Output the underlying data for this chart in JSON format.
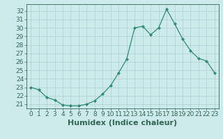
{
  "x": [
    0,
    1,
    2,
    3,
    4,
    5,
    6,
    7,
    8,
    9,
    10,
    11,
    12,
    13,
    14,
    15,
    16,
    17,
    18,
    19,
    20,
    21,
    22,
    23
  ],
  "y": [
    23,
    22.7,
    21.8,
    21.5,
    20.9,
    20.8,
    20.8,
    21.0,
    21.4,
    22.2,
    23.2,
    24.7,
    26.3,
    30.0,
    30.2,
    29.2,
    30.0,
    32.2,
    30.5,
    28.7,
    27.3,
    26.4,
    26.1,
    24.7
  ],
  "line_color": "#2e8b74",
  "marker": "D",
  "marker_size": 2.0,
  "bg_color": "#cdeaea",
  "grid_color": "#b0d4d4",
  "xlabel": "Humidex (Indice chaleur)",
  "ylim": [
    20.5,
    32.8
  ],
  "yticks": [
    21,
    22,
    23,
    24,
    25,
    26,
    27,
    28,
    29,
    30,
    31,
    32
  ],
  "xticks": [
    0,
    1,
    2,
    3,
    4,
    5,
    6,
    7,
    8,
    9,
    10,
    11,
    12,
    13,
    14,
    15,
    16,
    17,
    18,
    19,
    20,
    21,
    22,
    23
  ],
  "font_color": "#336655",
  "tick_label_fontsize": 6.5,
  "xlabel_fontsize": 8.0
}
